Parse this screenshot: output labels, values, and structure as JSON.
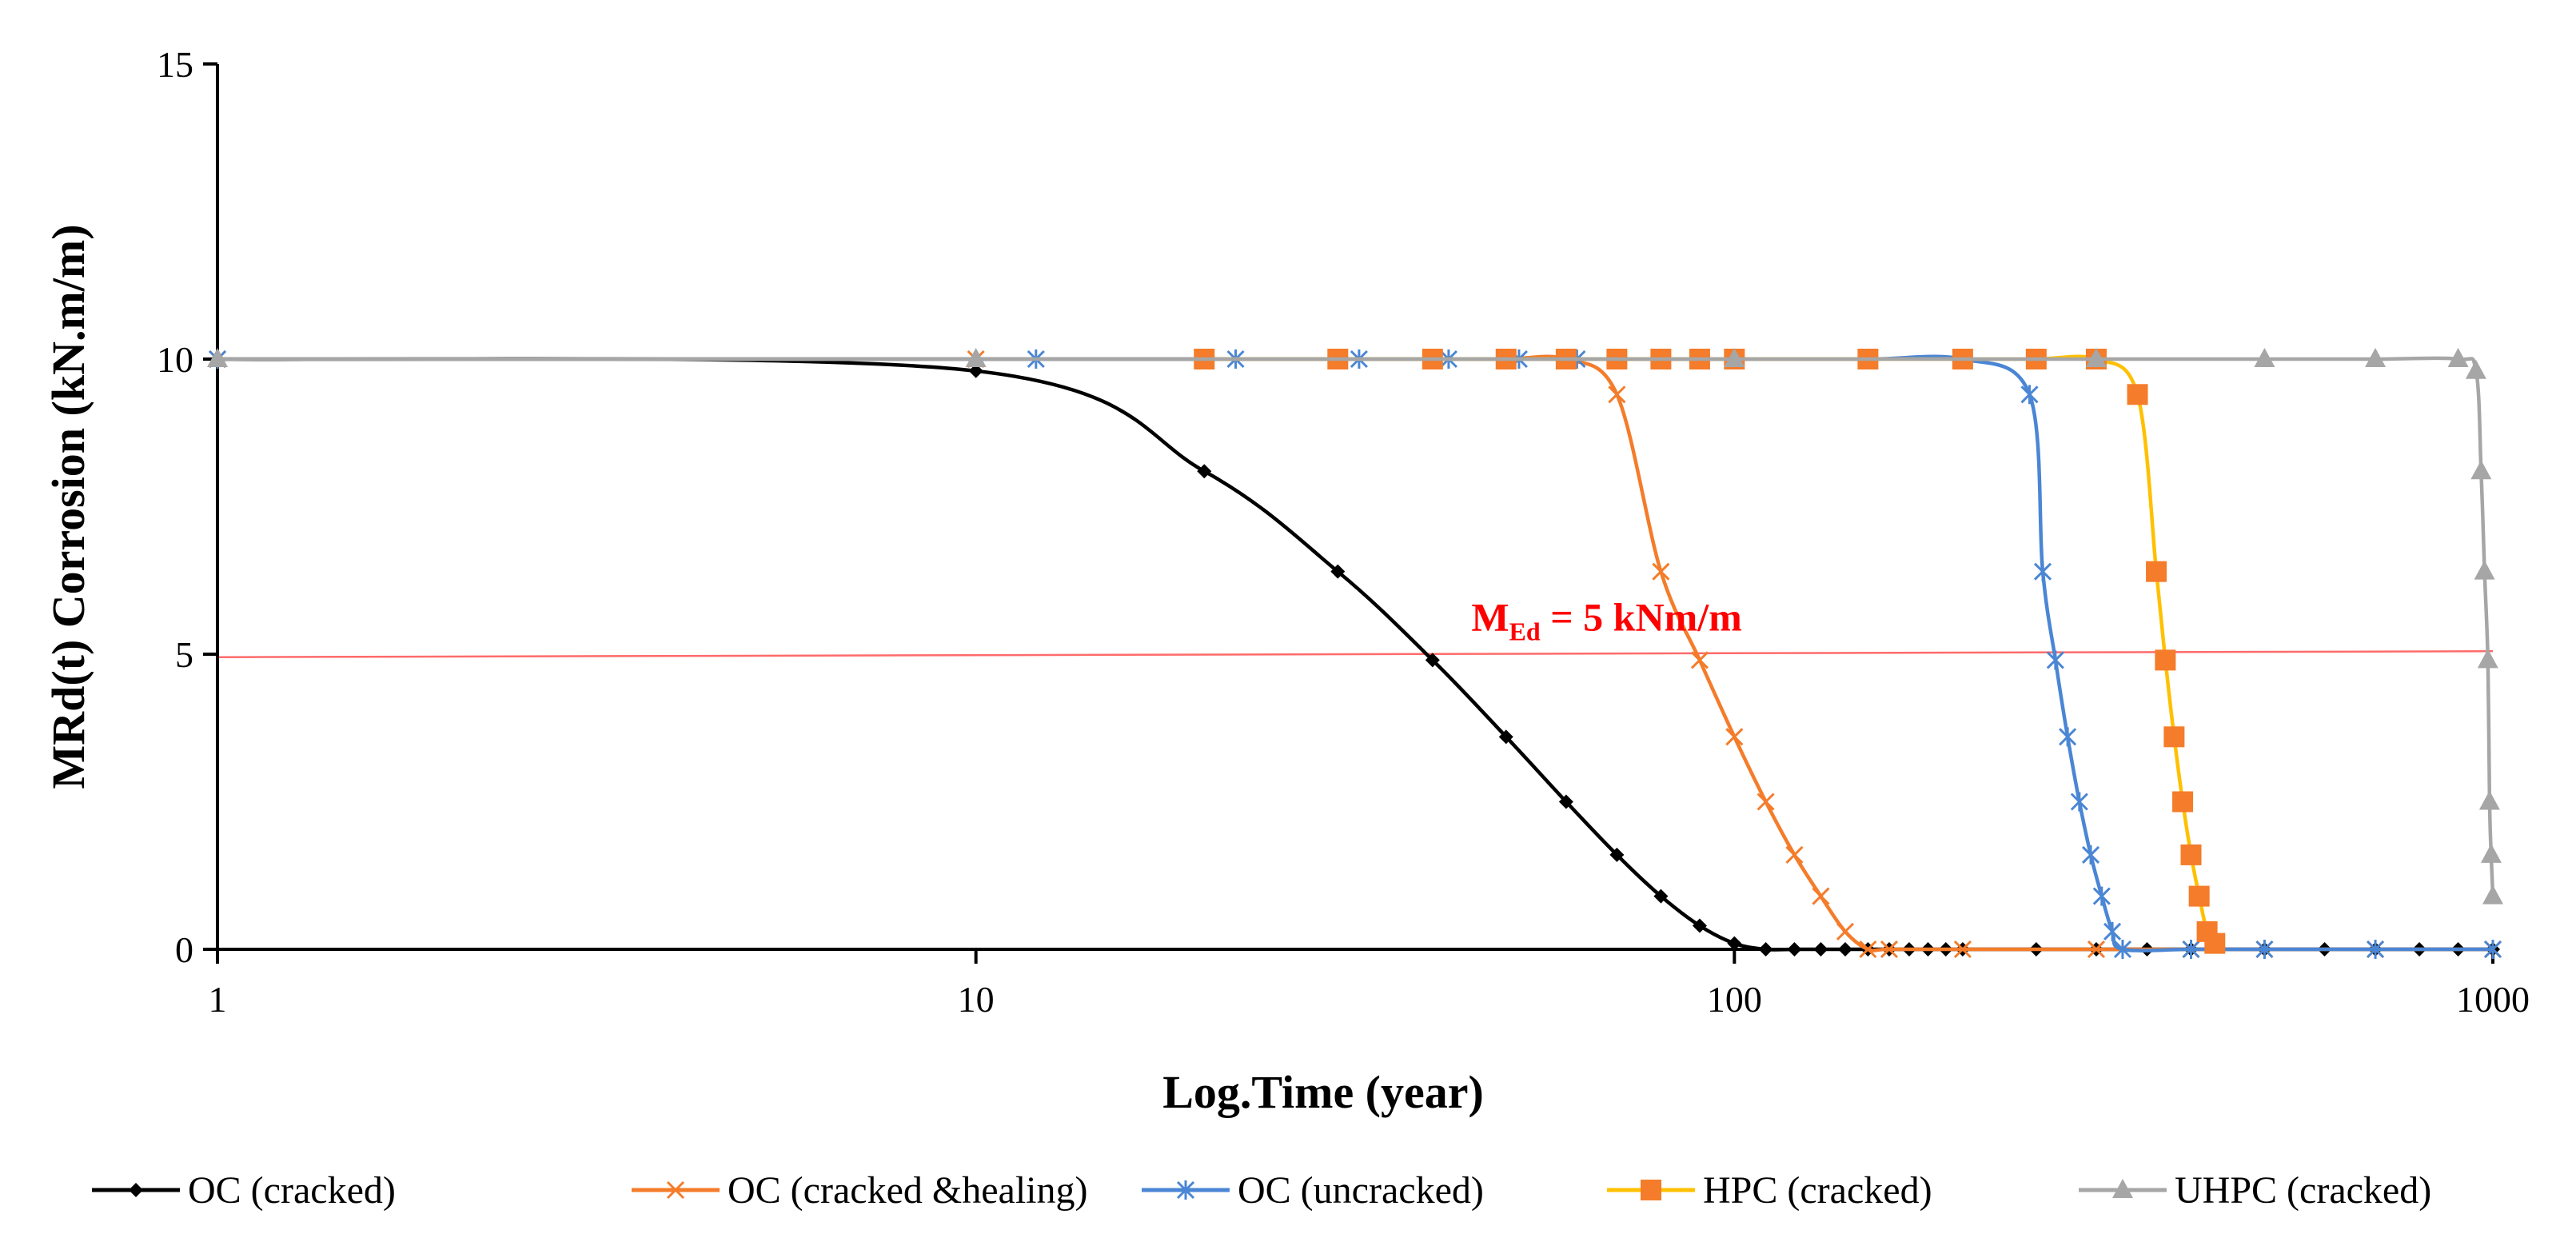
{
  "chart_data": {
    "type": "line",
    "title": "",
    "xlabel": "Log.Time (year)",
    "ylabel": "MRd(t) Corrosion  (kN.m/m)",
    "xscale": "log",
    "xlim": [
      1,
      1000
    ],
    "ylim": [
      0,
      15
    ],
    "xticks": [
      1,
      10,
      100,
      1000
    ],
    "xtick_labels": [
      "1",
      "10",
      "100",
      "1000"
    ],
    "yticks": [
      0,
      5,
      10,
      15
    ],
    "ytick_labels": [
      "0",
      "5",
      "10",
      "15"
    ],
    "grid": false,
    "legend_position": "bottom",
    "annotations": [
      {
        "label": "M",
        "subscript": "Ed",
        "rest": " = 5 kNm/m",
        "x": 45,
        "y": 5.4,
        "color": "#ff0000"
      }
    ],
    "reference_lines": [
      {
        "name": "MEd",
        "x": [
          1,
          1000
        ],
        "y": [
          4.95,
          5.05
        ],
        "color": "#ff6b6b"
      }
    ],
    "series": [
      {
        "name": "OC (cracked)",
        "color": "#000000",
        "marker": "diamond",
        "x": [
          1,
          10,
          20,
          30,
          40,
          50,
          60,
          70,
          80,
          90,
          100,
          110,
          120,
          130,
          140,
          150,
          160,
          170,
          180,
          190,
          200,
          250,
          300,
          350,
          400,
          500,
          600,
          700,
          800,
          900,
          1000
        ],
        "y": [
          10,
          9.8,
          8.1,
          6.4,
          4.9,
          3.6,
          2.5,
          1.6,
          0.9,
          0.4,
          0.1,
          0,
          0,
          0,
          0,
          0,
          0,
          0,
          0,
          0,
          0,
          0,
          0,
          0,
          0,
          0,
          0,
          0,
          0,
          0,
          0
        ]
      },
      {
        "name": "OC (cracked &healing)",
        "color": "#f47c2a",
        "marker": "x",
        "x": [
          1,
          10,
          20,
          30,
          40,
          50,
          60,
          70,
          80,
          90,
          100,
          110,
          120,
          130,
          140,
          150,
          160,
          200,
          300,
          400,
          500,
          700,
          1000
        ],
        "y": [
          10,
          10,
          10,
          10,
          10,
          10,
          10,
          9.4,
          6.4,
          4.9,
          3.6,
          2.5,
          1.6,
          0.9,
          0.3,
          0,
          0,
          0,
          0,
          0,
          0,
          0,
          0
        ]
      },
      {
        "name": "OC (uncracked)",
        "color": "#4a86d4",
        "marker": "star",
        "x": [
          1,
          12,
          22,
          32,
          42,
          52,
          62,
          100,
          150,
          200,
          245,
          255,
          265,
          275,
          285,
          295,
          305,
          315,
          325,
          400,
          500,
          700,
          1000
        ],
        "y": [
          10,
          10,
          10,
          10,
          10,
          10,
          10,
          10,
          10,
          10,
          9.4,
          6.4,
          4.9,
          3.6,
          2.5,
          1.6,
          0.9,
          0.3,
          0,
          0,
          0,
          0,
          0
        ]
      },
      {
        "name": "HPC (cracked)",
        "color": "#ffc000",
        "marker_color": "#f47c2a",
        "marker": "square",
        "x": [
          20,
          30,
          40,
          50,
          60,
          70,
          80,
          90,
          100,
          150,
          200,
          250,
          300,
          340,
          360,
          370,
          380,
          390,
          400,
          410,
          420,
          430
        ],
        "y": [
          10,
          10,
          10,
          10,
          10,
          10,
          10,
          10,
          10,
          10,
          10,
          10,
          10,
          9.4,
          6.4,
          4.9,
          3.6,
          2.5,
          1.6,
          0.9,
          0.3,
          0.1
        ]
      },
      {
        "name": "UHPC (cracked)",
        "color": "#a6a6a6",
        "marker": "triangle",
        "x": [
          1,
          10,
          100,
          300,
          500,
          700,
          900,
          950,
          965,
          975,
          985,
          990,
          995,
          1000
        ],
        "y": [
          10,
          10,
          10,
          10,
          10,
          10,
          10,
          9.8,
          8.1,
          6.4,
          4.9,
          2.5,
          1.6,
          0.9
        ]
      }
    ]
  }
}
